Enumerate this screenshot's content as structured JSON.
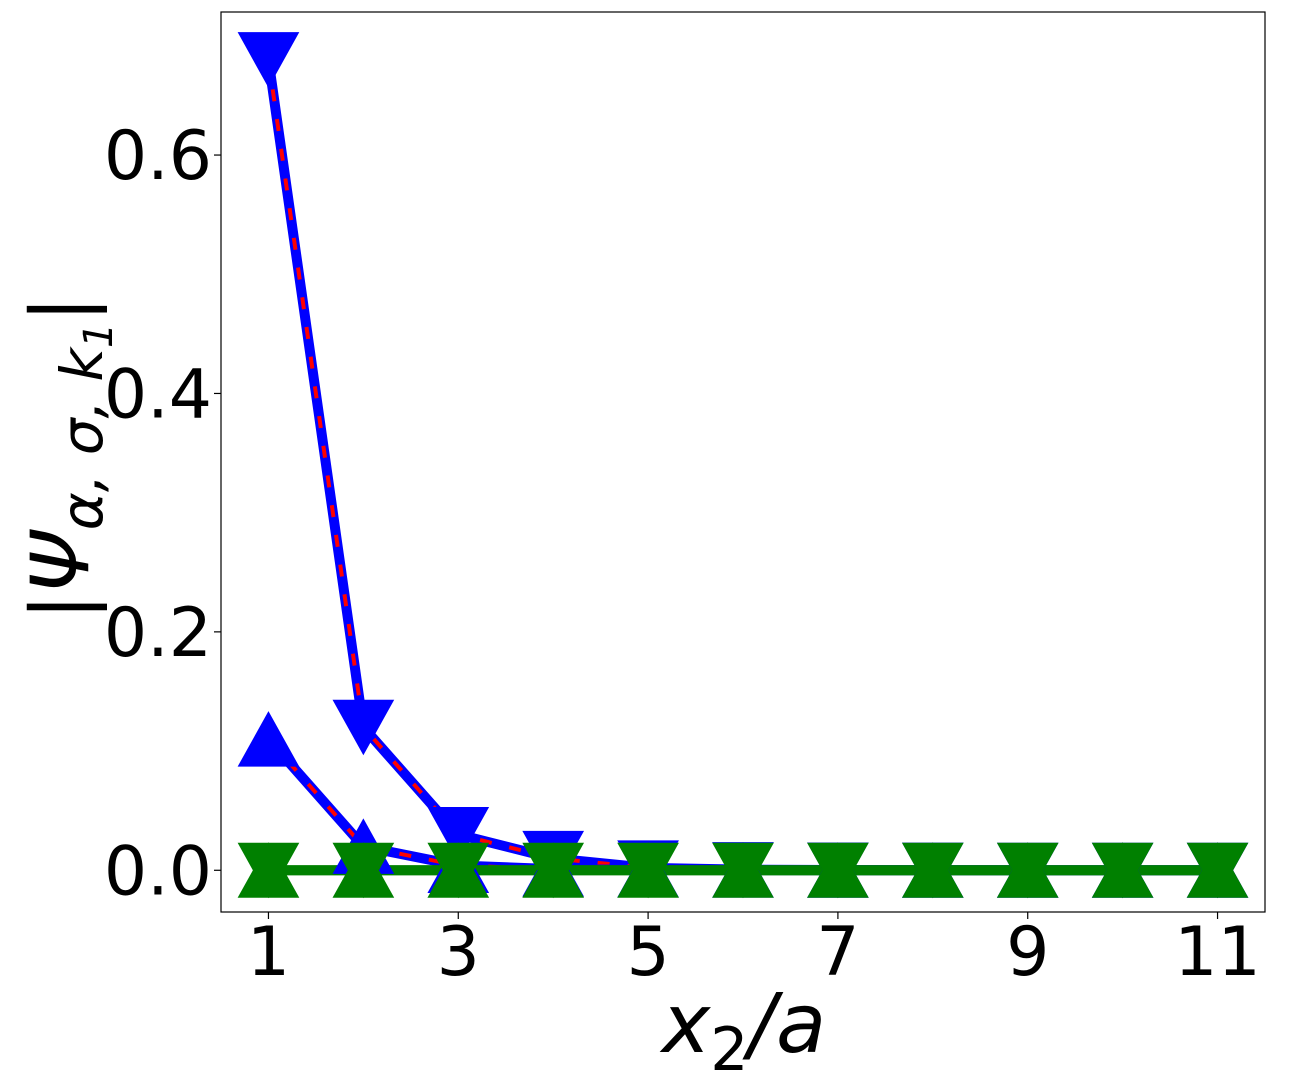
{
  "chart_data": {
    "type": "line",
    "title": "",
    "xlabel": {
      "base": "x",
      "sub": "2",
      "rest": "/a"
    },
    "ylabel": {
      "left": "|Ψ",
      "sub": "α, σ, k",
      "subsub": "1",
      "right": "|"
    },
    "xlim": [
      0.5,
      11.5
    ],
    "ylim": [
      -0.035,
      0.72
    ],
    "x_ticks": [
      1,
      3,
      5,
      7,
      9,
      11
    ],
    "x_tick_labels": [
      "1",
      "3",
      "5",
      "7",
      "9",
      "11"
    ],
    "y_ticks": [
      0.0,
      0.2,
      0.4,
      0.6
    ],
    "y_tick_labels": [
      "0.0",
      "0.2",
      "0.4",
      "0.6"
    ],
    "grid": false,
    "x": [
      1,
      2,
      3,
      4,
      5,
      6,
      7,
      8,
      9,
      10,
      11
    ],
    "series": [
      {
        "values": [
          0.68,
          0.12,
          0.03,
          0.01,
          0.002,
          0.0005,
          0.0002,
          0.0001,
          0.0,
          0.0,
          0.0
        ],
        "marker": "triangle-down",
        "line_color": "#0000ff",
        "dash_color": "#ff0000",
        "marker_color": "#0000ff"
      },
      {
        "values": [
          0.11,
          0.02,
          0.004,
          0.001,
          0.0003,
          0.0001,
          0.0,
          0.0,
          0.0,
          0.0,
          0.0
        ],
        "marker": "triangle-up",
        "line_color": "#0000ff",
        "dash_color": "#ff0000",
        "marker_color": "#0000ff"
      },
      {
        "values": [
          0.0,
          0.0,
          0.0,
          0.0,
          0.0,
          0.0,
          0.0,
          0.0,
          0.0,
          0.0,
          0.0
        ],
        "marker": "triangle-up",
        "line_color": "#008000",
        "dash_color": "#008000",
        "marker_color": "#008000"
      },
      {
        "values": [
          0.0,
          0.0,
          0.0,
          0.0,
          0.0,
          0.0,
          0.0,
          0.0,
          0.0,
          0.0,
          0.0
        ],
        "marker": "triangle-down",
        "line_color": "#008000",
        "dash_color": "#008000",
        "marker_color": "#008000"
      }
    ]
  }
}
